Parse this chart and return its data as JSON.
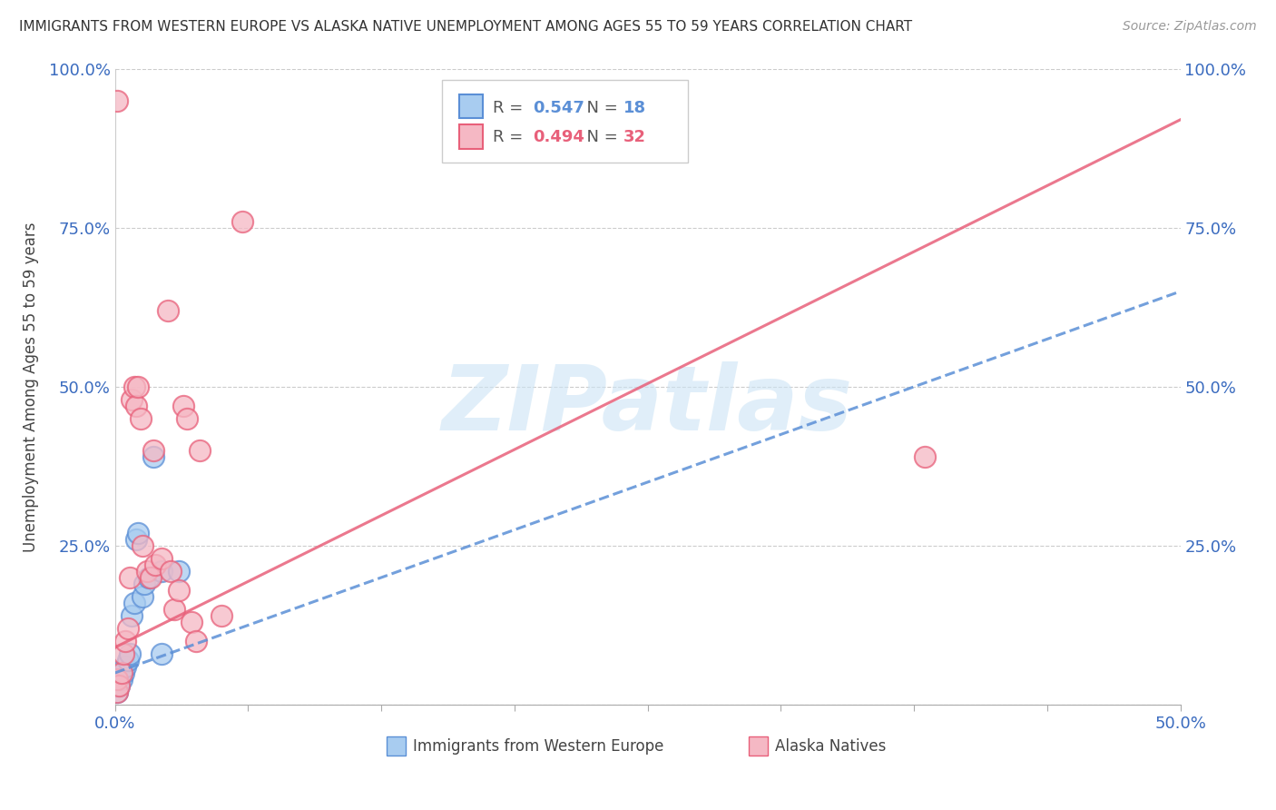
{
  "title": "IMMIGRANTS FROM WESTERN EUROPE VS ALASKA NATIVE UNEMPLOYMENT AMONG AGES 55 TO 59 YEARS CORRELATION CHART",
  "source": "Source: ZipAtlas.com",
  "ylabel": "Unemployment Among Ages 55 to 59 years",
  "xlim": [
    0.0,
    0.5
  ],
  "ylim": [
    0.0,
    1.0
  ],
  "xticks": [
    0.0,
    0.0625,
    0.125,
    0.1875,
    0.25,
    0.3125,
    0.375,
    0.4375,
    0.5
  ],
  "xticklabels_show": [
    "0.0%",
    "",
    "",
    "",
    "",
    "",
    "",
    "",
    "50.0%"
  ],
  "yticks": [
    0.0,
    0.25,
    0.5,
    0.75,
    1.0
  ],
  "yticklabels": [
    "",
    "25.0%",
    "50.0%",
    "75.0%",
    "100.0%"
  ],
  "blue_R": 0.547,
  "blue_N": 18,
  "pink_R": 0.494,
  "pink_N": 32,
  "blue_face": "#a8ccf0",
  "blue_edge": "#5b8fd6",
  "pink_face": "#f5b8c4",
  "pink_edge": "#e8607a",
  "blue_line_color": "#5b8fd6",
  "pink_line_color": "#e8607a",
  "tick_color": "#3a6bbf",
  "blue_x": [
    0.001,
    0.002,
    0.003,
    0.004,
    0.005,
    0.006,
    0.007,
    0.008,
    0.009,
    0.01,
    0.011,
    0.013,
    0.014,
    0.016,
    0.018,
    0.022,
    0.022,
    0.03
  ],
  "blue_y": [
    0.02,
    0.03,
    0.04,
    0.05,
    0.06,
    0.07,
    0.08,
    0.14,
    0.16,
    0.26,
    0.27,
    0.17,
    0.19,
    0.2,
    0.39,
    0.21,
    0.08,
    0.21
  ],
  "pink_x": [
    0.001,
    0.001,
    0.002,
    0.003,
    0.004,
    0.005,
    0.006,
    0.007,
    0.008,
    0.009,
    0.01,
    0.011,
    0.012,
    0.013,
    0.015,
    0.017,
    0.018,
    0.019,
    0.022,
    0.025,
    0.026,
    0.028,
    0.03,
    0.032,
    0.034,
    0.036,
    0.038,
    0.04,
    0.05,
    0.06,
    0.38,
    0.001
  ],
  "pink_y": [
    0.02,
    0.04,
    0.03,
    0.05,
    0.08,
    0.1,
    0.12,
    0.2,
    0.48,
    0.5,
    0.47,
    0.5,
    0.45,
    0.25,
    0.21,
    0.2,
    0.4,
    0.22,
    0.23,
    0.62,
    0.21,
    0.15,
    0.18,
    0.47,
    0.45,
    0.13,
    0.1,
    0.4,
    0.14,
    0.76,
    0.39,
    0.95
  ],
  "blue_trend": [
    0.0,
    0.5
  ],
  "blue_trend_y": [
    0.05,
    0.65
  ],
  "pink_trend": [
    0.0,
    0.5
  ],
  "pink_trend_y": [
    0.09,
    0.92
  ],
  "watermark": "ZIPatlas",
  "bg": "#ffffff",
  "grid_color": "#cccccc"
}
